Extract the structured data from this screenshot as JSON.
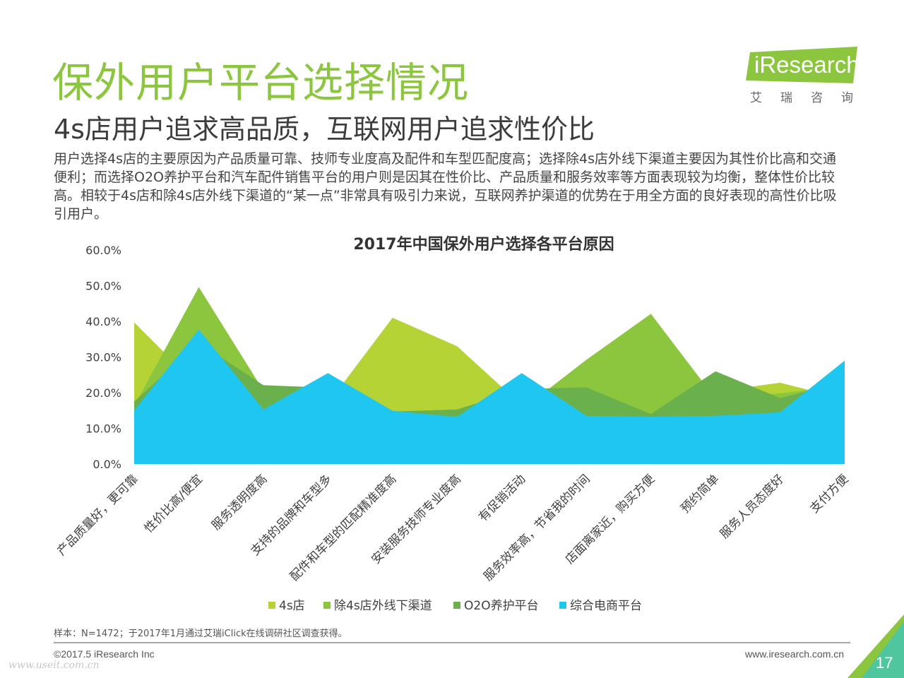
{
  "header": {
    "title": "保外用户平台选择情况",
    "subtitle": "4s店用户追求高品质，互联网用户追求性价比",
    "description": "用户选择4s店的主要原因为产品质量可靠、技师专业度高及配件和车型匹配度高；选择除4s店外线下渠道主要因为其性价比高和交通便利；而选择O2O养护平台和汽车配件销售平台的用户则是因其在性价比、产品质量和服务效率等方面表现较为均衡，整体性价比较高。相较于4s店和除4s店外线下渠道的“某一点”非常具有吸引力来说，互联网养护渠道的优势在于用全方面的良好表现的高性价比吸引用户。"
  },
  "logo": {
    "text": "iResearch",
    "cn_text": "艾瑞咨询",
    "color": "#8cc63f"
  },
  "chart_data": {
    "type": "area",
    "title": "2017年中国保外用户选择各平台原因",
    "categories": [
      "产品质量好，更可靠",
      "性价比高/便宜",
      "服务透明度高",
      "支持的品牌和车型多",
      "配件和车型的匹配精准度高",
      "安装服务技师专业度高",
      "有促销活动",
      "服务效率高，节省我的时间",
      "店面离家近，购买方便",
      "预约简单",
      "服务人员态度好",
      "支付方便"
    ],
    "ylim": [
      0,
      60
    ],
    "yticks": [
      "0.0%",
      "10.0%",
      "20.0%",
      "30.0%",
      "40.0%",
      "50.0%",
      "60.0%"
    ],
    "series": [
      {
        "name": "4s店",
        "color": "#b5d334",
        "values": [
          39.7,
          21.6,
          18.5,
          17.0,
          41.0,
          33.0,
          16.5,
          18.0,
          14.0,
          20.3,
          22.8,
          18.2
        ]
      },
      {
        "name": "除4s店外线下渠道",
        "color": "#8cc63f",
        "values": [
          16.3,
          49.6,
          20.6,
          17.0,
          14.9,
          14.0,
          15.2,
          29.2,
          42.1,
          18.3,
          19.8,
          22.0
        ]
      },
      {
        "name": "O2O养护平台",
        "color": "#6ab04c",
        "values": [
          17.5,
          34.0,
          22.1,
          21.4,
          14.7,
          15.3,
          21.0,
          21.5,
          14.0,
          26.0,
          18.5,
          23.0
        ]
      },
      {
        "name": "综合电商平台",
        "color": "#1fc6ef",
        "values": [
          15.0,
          37.7,
          15.3,
          25.5,
          14.9,
          13.2,
          25.5,
          13.5,
          13.2,
          13.5,
          14.5,
          29.0
        ]
      }
    ],
    "legend_position": "bottom",
    "grid": false
  },
  "footer": {
    "note": "样本：N=1472；于2017年1月通过艾瑞iClick在线调研社区调查获得。",
    "copyright": "©2017.5 iResearch Inc",
    "website": "www.iresearch.com.cn",
    "watermark": "www.useit.com.cn",
    "page": "17"
  }
}
